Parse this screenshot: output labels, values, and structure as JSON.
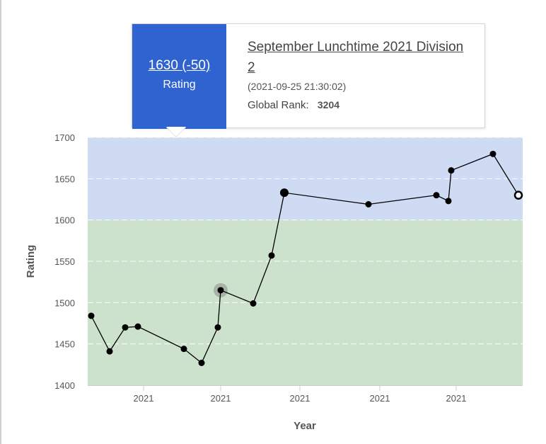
{
  "tooltip": {
    "rating": "1630 (-50)",
    "rating_label": "Rating",
    "contest_name": "September Lunchtime 2021 Division 2",
    "date": "(2021-09-25 21:30:02)",
    "global_rank_label": "Global Rank:",
    "global_rank_value": "3204",
    "accent_color": "#2f63cf"
  },
  "chart_data": {
    "type": "line",
    "xlabel": "Year",
    "ylabel": "Rating",
    "ylim": [
      1400,
      1700
    ],
    "yticks": [
      1400,
      1450,
      1500,
      1550,
      1600,
      1650,
      1700
    ],
    "xtick_labels": [
      "2021",
      "2021",
      "2021",
      "2021",
      "2021"
    ],
    "bands": [
      {
        "from": 1400,
        "to": 1600,
        "color": "#cde2cc"
      },
      {
        "from": 1600,
        "to": 1700,
        "color": "#cfdaf3"
      }
    ],
    "grid": true,
    "series": [
      {
        "color": "#000000",
        "values": [
          1484,
          1441,
          1470,
          1471,
          1444,
          1427,
          1470,
          1515,
          1499,
          1557,
          1633,
          1619,
          1630,
          1623,
          1660,
          1680,
          1630
        ]
      }
    ],
    "highlighted_point_index": 7,
    "selected_point_index": 16
  }
}
